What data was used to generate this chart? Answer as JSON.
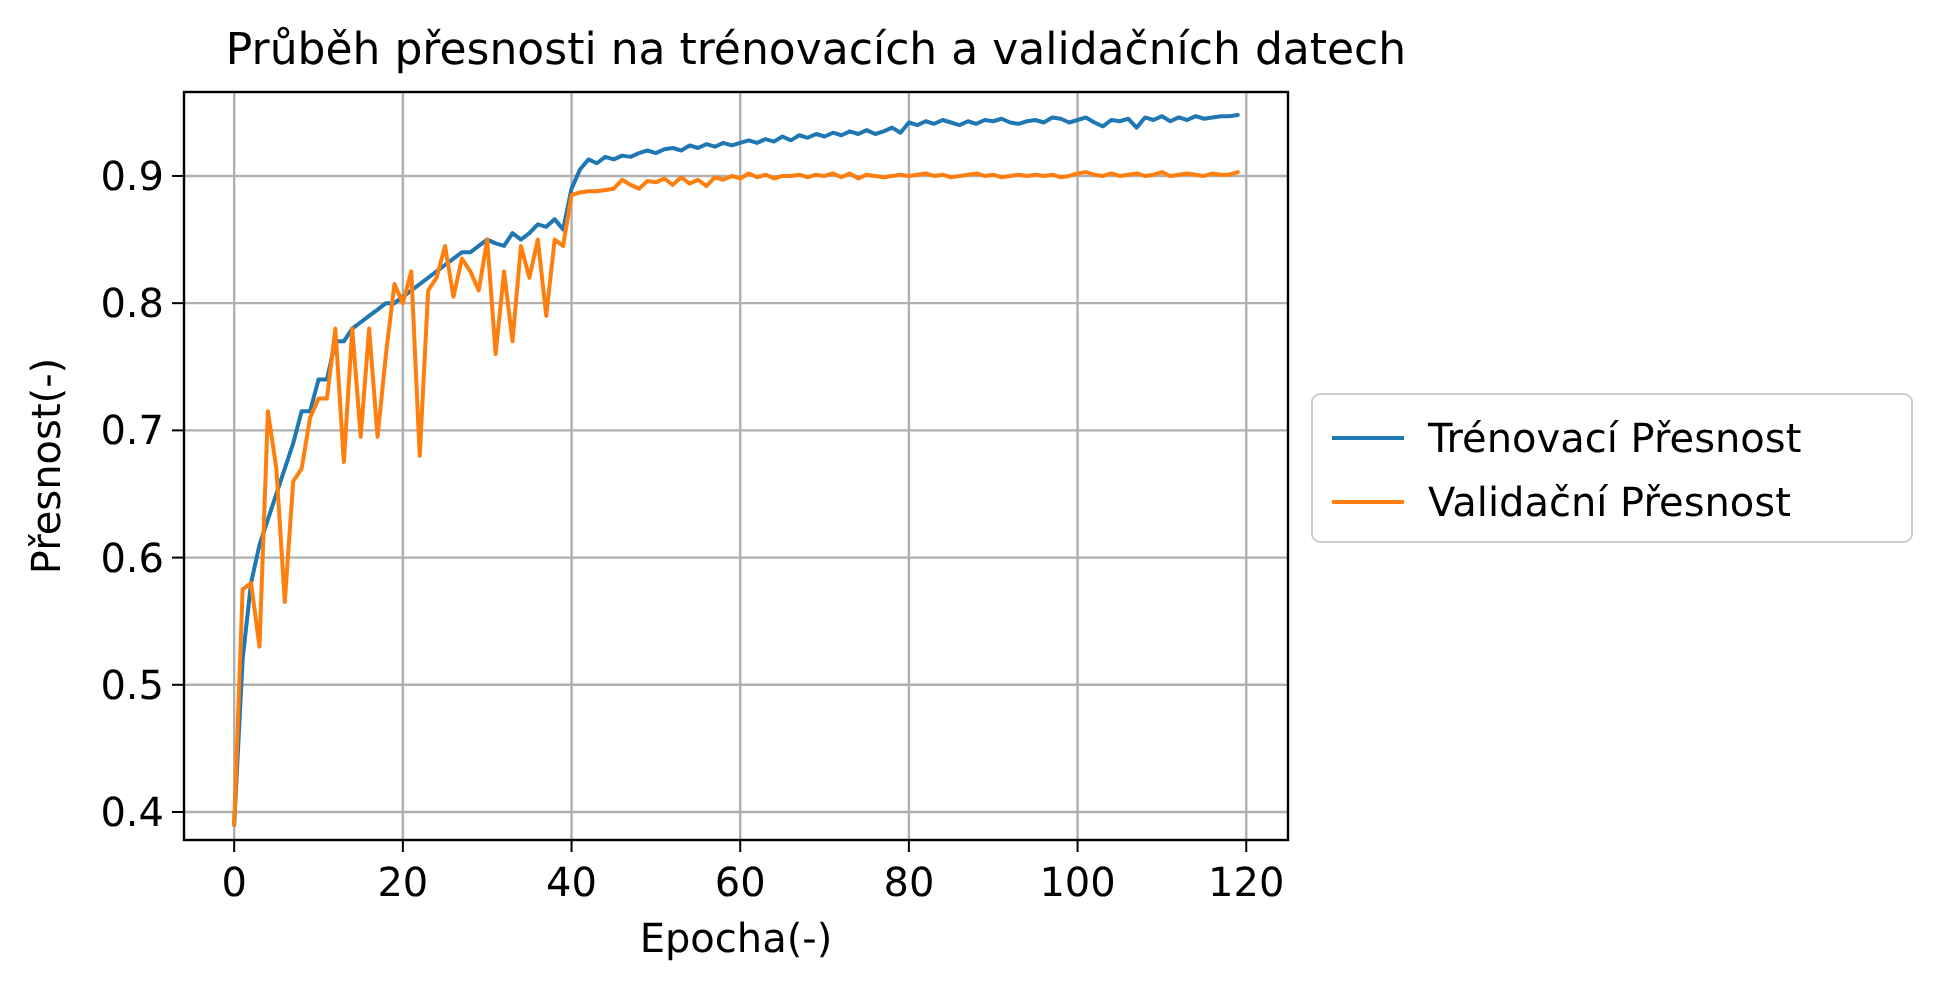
{
  "chart_data": {
    "type": "line",
    "title": "Průběh přesnosti na trénovacích a validačních datech",
    "xlabel": "Epocha(-)",
    "ylabel": "Přesnost(-)",
    "x": [
      0,
      1,
      2,
      3,
      4,
      5,
      6,
      7,
      8,
      9,
      10,
      11,
      12,
      13,
      14,
      15,
      16,
      17,
      18,
      19,
      20,
      21,
      22,
      23,
      24,
      25,
      26,
      27,
      28,
      29,
      30,
      31,
      32,
      33,
      34,
      35,
      36,
      37,
      38,
      39,
      40,
      41,
      42,
      43,
      44,
      45,
      46,
      47,
      48,
      49,
      50,
      51,
      52,
      53,
      54,
      55,
      56,
      57,
      58,
      59,
      60,
      61,
      62,
      63,
      64,
      65,
      66,
      67,
      68,
      69,
      70,
      71,
      72,
      73,
      74,
      75,
      76,
      77,
      78,
      79,
      80,
      81,
      82,
      83,
      84,
      85,
      86,
      87,
      88,
      89,
      90,
      91,
      92,
      93,
      94,
      95,
      96,
      97,
      98,
      99,
      100,
      101,
      102,
      103,
      104,
      105,
      106,
      107,
      108,
      109,
      110,
      111,
      112,
      113,
      114,
      115,
      116,
      117,
      118,
      119
    ],
    "series": [
      {
        "name": "Trénovací Přesnost",
        "color": "#1f77b4",
        "values": [
          0.39,
          0.52,
          0.58,
          0.61,
          0.63,
          0.65,
          0.67,
          0.69,
          0.715,
          0.715,
          0.74,
          0.74,
          0.77,
          0.77,
          0.78,
          0.785,
          0.79,
          0.795,
          0.8,
          0.8,
          0.805,
          0.81,
          0.815,
          0.82,
          0.825,
          0.83,
          0.835,
          0.84,
          0.84,
          0.845,
          0.85,
          0.847,
          0.845,
          0.855,
          0.85,
          0.855,
          0.862,
          0.86,
          0.866,
          0.858,
          0.89,
          0.905,
          0.913,
          0.91,
          0.915,
          0.913,
          0.916,
          0.915,
          0.918,
          0.92,
          0.918,
          0.921,
          0.922,
          0.92,
          0.924,
          0.922,
          0.925,
          0.923,
          0.926,
          0.924,
          0.926,
          0.928,
          0.926,
          0.929,
          0.927,
          0.931,
          0.928,
          0.932,
          0.93,
          0.933,
          0.931,
          0.934,
          0.932,
          0.935,
          0.933,
          0.936,
          0.933,
          0.935,
          0.938,
          0.934,
          0.942,
          0.94,
          0.943,
          0.941,
          0.944,
          0.942,
          0.94,
          0.943,
          0.941,
          0.944,
          0.943,
          0.945,
          0.942,
          0.941,
          0.943,
          0.944,
          0.942,
          0.946,
          0.945,
          0.942,
          0.944,
          0.946,
          0.942,
          0.939,
          0.944,
          0.943,
          0.945,
          0.938,
          0.946,
          0.944,
          0.947,
          0.943,
          0.946,
          0.944,
          0.947,
          0.945,
          0.946,
          0.947,
          0.947,
          0.948
        ]
      },
      {
        "name": "Validační Přesnost",
        "color": "#ff7f0e",
        "values": [
          0.39,
          0.575,
          0.58,
          0.53,
          0.715,
          0.67,
          0.565,
          0.66,
          0.67,
          0.71,
          0.725,
          0.725,
          0.78,
          0.675,
          0.78,
          0.695,
          0.78,
          0.695,
          0.76,
          0.815,
          0.8,
          0.825,
          0.68,
          0.81,
          0.82,
          0.845,
          0.805,
          0.835,
          0.825,
          0.81,
          0.85,
          0.76,
          0.825,
          0.77,
          0.845,
          0.82,
          0.85,
          0.79,
          0.85,
          0.845,
          0.885,
          0.887,
          0.888,
          0.888,
          0.889,
          0.89,
          0.897,
          0.893,
          0.89,
          0.896,
          0.895,
          0.898,
          0.893,
          0.899,
          0.894,
          0.897,
          0.892,
          0.899,
          0.897,
          0.9,
          0.898,
          0.902,
          0.899,
          0.901,
          0.898,
          0.9,
          0.9,
          0.901,
          0.899,
          0.901,
          0.9,
          0.902,
          0.899,
          0.902,
          0.898,
          0.901,
          0.9,
          0.899,
          0.9,
          0.901,
          0.9,
          0.901,
          0.902,
          0.9,
          0.901,
          0.899,
          0.9,
          0.901,
          0.902,
          0.9,
          0.901,
          0.899,
          0.9,
          0.901,
          0.9,
          0.901,
          0.9,
          0.901,
          0.899,
          0.9,
          0.902,
          0.903,
          0.901,
          0.9,
          0.902,
          0.9,
          0.901,
          0.902,
          0.9,
          0.901,
          0.903,
          0.9,
          0.901,
          0.902,
          0.901,
          0.9,
          0.902,
          0.901,
          0.901,
          0.903
        ]
      }
    ],
    "xlim": [
      -5.95,
      124.95
    ],
    "ylim": [
      0.378,
      0.966
    ],
    "xticks": [
      0,
      20,
      40,
      60,
      80,
      100,
      120
    ],
    "yticks": [
      0.4,
      0.5,
      0.6,
      0.7,
      0.8,
      0.9
    ],
    "grid": true,
    "legend": "right"
  }
}
